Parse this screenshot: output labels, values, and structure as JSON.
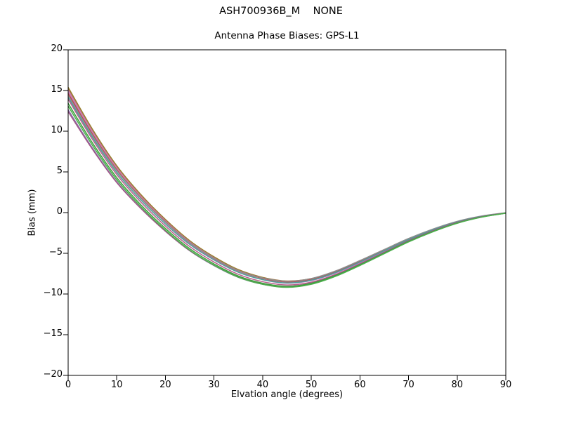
{
  "figure": {
    "suptitle": "ASH700936B_M    NONE"
  },
  "axes": {
    "title": "Antenna Phase Biases: GPS-L1",
    "xlabel": "Elvation angle (degrees)",
    "ylabel": "Bias (mm)"
  },
  "chart_data": {
    "type": "line",
    "suptitle": "ASH700936B_M    NONE",
    "title": "Antenna Phase Biases: GPS-L1",
    "xlabel": "Elvation angle (degrees)",
    "ylabel": "Bias (mm)",
    "xlim": [
      0,
      90
    ],
    "ylim": [
      -20,
      20
    ],
    "x_ticks": [
      0,
      10,
      20,
      30,
      40,
      50,
      60,
      70,
      80,
      90
    ],
    "y_ticks": [
      -20,
      -15,
      -10,
      -5,
      0,
      5,
      10,
      15,
      20
    ],
    "grid": false,
    "legend": "none",
    "x": [
      0,
      5,
      10,
      15,
      20,
      25,
      30,
      35,
      40,
      45,
      50,
      55,
      60,
      65,
      70,
      75,
      80,
      85,
      90
    ],
    "base_values": [
      13.9,
      9.0,
      4.7,
      1.3,
      -1.6,
      -4.1,
      -6.0,
      -7.5,
      -8.4,
      -8.8,
      -8.45,
      -7.5,
      -6.2,
      -4.8,
      -3.4,
      -2.2,
      -1.2,
      -0.5,
      -0.05
    ],
    "half_spread": [
      1.5,
      1.3,
      1.15,
      1.0,
      0.9,
      0.8,
      0.72,
      0.65,
      0.6,
      0.55,
      0.5,
      0.45,
      0.4,
      0.33,
      0.26,
      0.2,
      0.14,
      0.08,
      0.03
    ],
    "series": [
      {
        "name": "trace-01",
        "color": "#a3622f",
        "start_factor": 0.93,
        "end_factor": 0.5
      },
      {
        "name": "trace-02",
        "color": "#97822d",
        "start_factor": 1.0,
        "end_factor": 0.3
      },
      {
        "name": "trace-03",
        "color": "#c9749c",
        "start_factor": 0.8,
        "end_factor": 0.2
      },
      {
        "name": "trace-04",
        "color": "#bb7ab8",
        "start_factor": 0.62,
        "end_factor": -0.15
      },
      {
        "name": "trace-05",
        "color": "#bb4a4a",
        "start_factor": 0.48,
        "end_factor": 0.62
      },
      {
        "name": "trace-06",
        "color": "#8f8f8f",
        "start_factor": 0.33,
        "end_factor": 1.0
      },
      {
        "name": "trace-07",
        "color": "#4f9e9a",
        "start_factor": 0.18,
        "end_factor": 0.4
      },
      {
        "name": "trace-08",
        "color": "#b85c8e",
        "start_factor": 0.02,
        "end_factor": -0.35
      },
      {
        "name": "trace-09",
        "color": "#8d6bb0",
        "start_factor": -0.85,
        "end_factor": -0.45
      },
      {
        "name": "trace-10",
        "color": "#a05a86",
        "start_factor": -1.0,
        "end_factor": 0.05
      },
      {
        "name": "trace-11",
        "color": "#3da03d",
        "start_factor": -0.32,
        "end_factor": -0.62
      },
      {
        "name": "trace-12",
        "color": "#4cae4c",
        "start_factor": -0.55,
        "end_factor": -0.85
      }
    ],
    "axis_color": "#000000",
    "background_color": "#ffffff"
  }
}
